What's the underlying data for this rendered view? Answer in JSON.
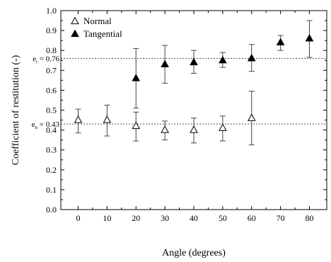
{
  "chart_data": {
    "type": "scatter",
    "xlabel": "Angle (degrees)",
    "ylabel": "Coefficient of restitution (-)",
    "xlim": [
      -6,
      86
    ],
    "ylim": [
      0.0,
      1.0
    ],
    "x_ticks": [
      0,
      10,
      20,
      30,
      40,
      50,
      60,
      70,
      80
    ],
    "y_ticks": [
      0.0,
      0.1,
      0.2,
      0.3,
      0.4,
      0.5,
      0.6,
      0.7,
      0.8,
      0.9,
      1.0
    ],
    "tick_labels_y": [
      "0.0",
      "0.1",
      "0.2",
      "0.3",
      "0.4",
      "0.5",
      "0.6",
      "0.7",
      "0.8",
      "0.9",
      "1.0"
    ],
    "tick_labels_x": [
      "0",
      "10",
      "20",
      "30",
      "40",
      "50",
      "60",
      "70",
      "80"
    ],
    "grid": false,
    "legend_position": "top-left",
    "series": [
      {
        "name": "Normal",
        "marker": "open-triangle",
        "color": "#000000",
        "x": [
          0,
          10,
          20,
          30,
          40,
          50,
          60
        ],
        "y": [
          0.45,
          0.45,
          0.42,
          0.4,
          0.4,
          0.41,
          0.46
        ],
        "err_low": [
          0.385,
          0.37,
          0.345,
          0.35,
          0.335,
          0.345,
          0.325
        ],
        "err_high": [
          0.505,
          0.525,
          0.49,
          0.445,
          0.46,
          0.47,
          0.595
        ]
      },
      {
        "name": "Tangential",
        "marker": "filled-triangle",
        "color": "#000000",
        "x": [
          20,
          30,
          40,
          50,
          60,
          70,
          80
        ],
        "y": [
          0.66,
          0.73,
          0.74,
          0.75,
          0.76,
          0.84,
          0.86
        ],
        "err_low": [
          0.51,
          0.635,
          0.685,
          0.715,
          0.695,
          0.8,
          0.765
        ],
        "err_high": [
          0.81,
          0.825,
          0.8,
          0.79,
          0.83,
          0.875,
          0.95
        ]
      }
    ],
    "reference_lines": [
      {
        "y": 0.76,
        "label_main": "e",
        "label_sub": "t",
        "label_value": " = 0.76"
      },
      {
        "y": 0.43,
        "label_main": "e",
        "label_sub": "n",
        "label_value": " = 0.43"
      }
    ]
  }
}
